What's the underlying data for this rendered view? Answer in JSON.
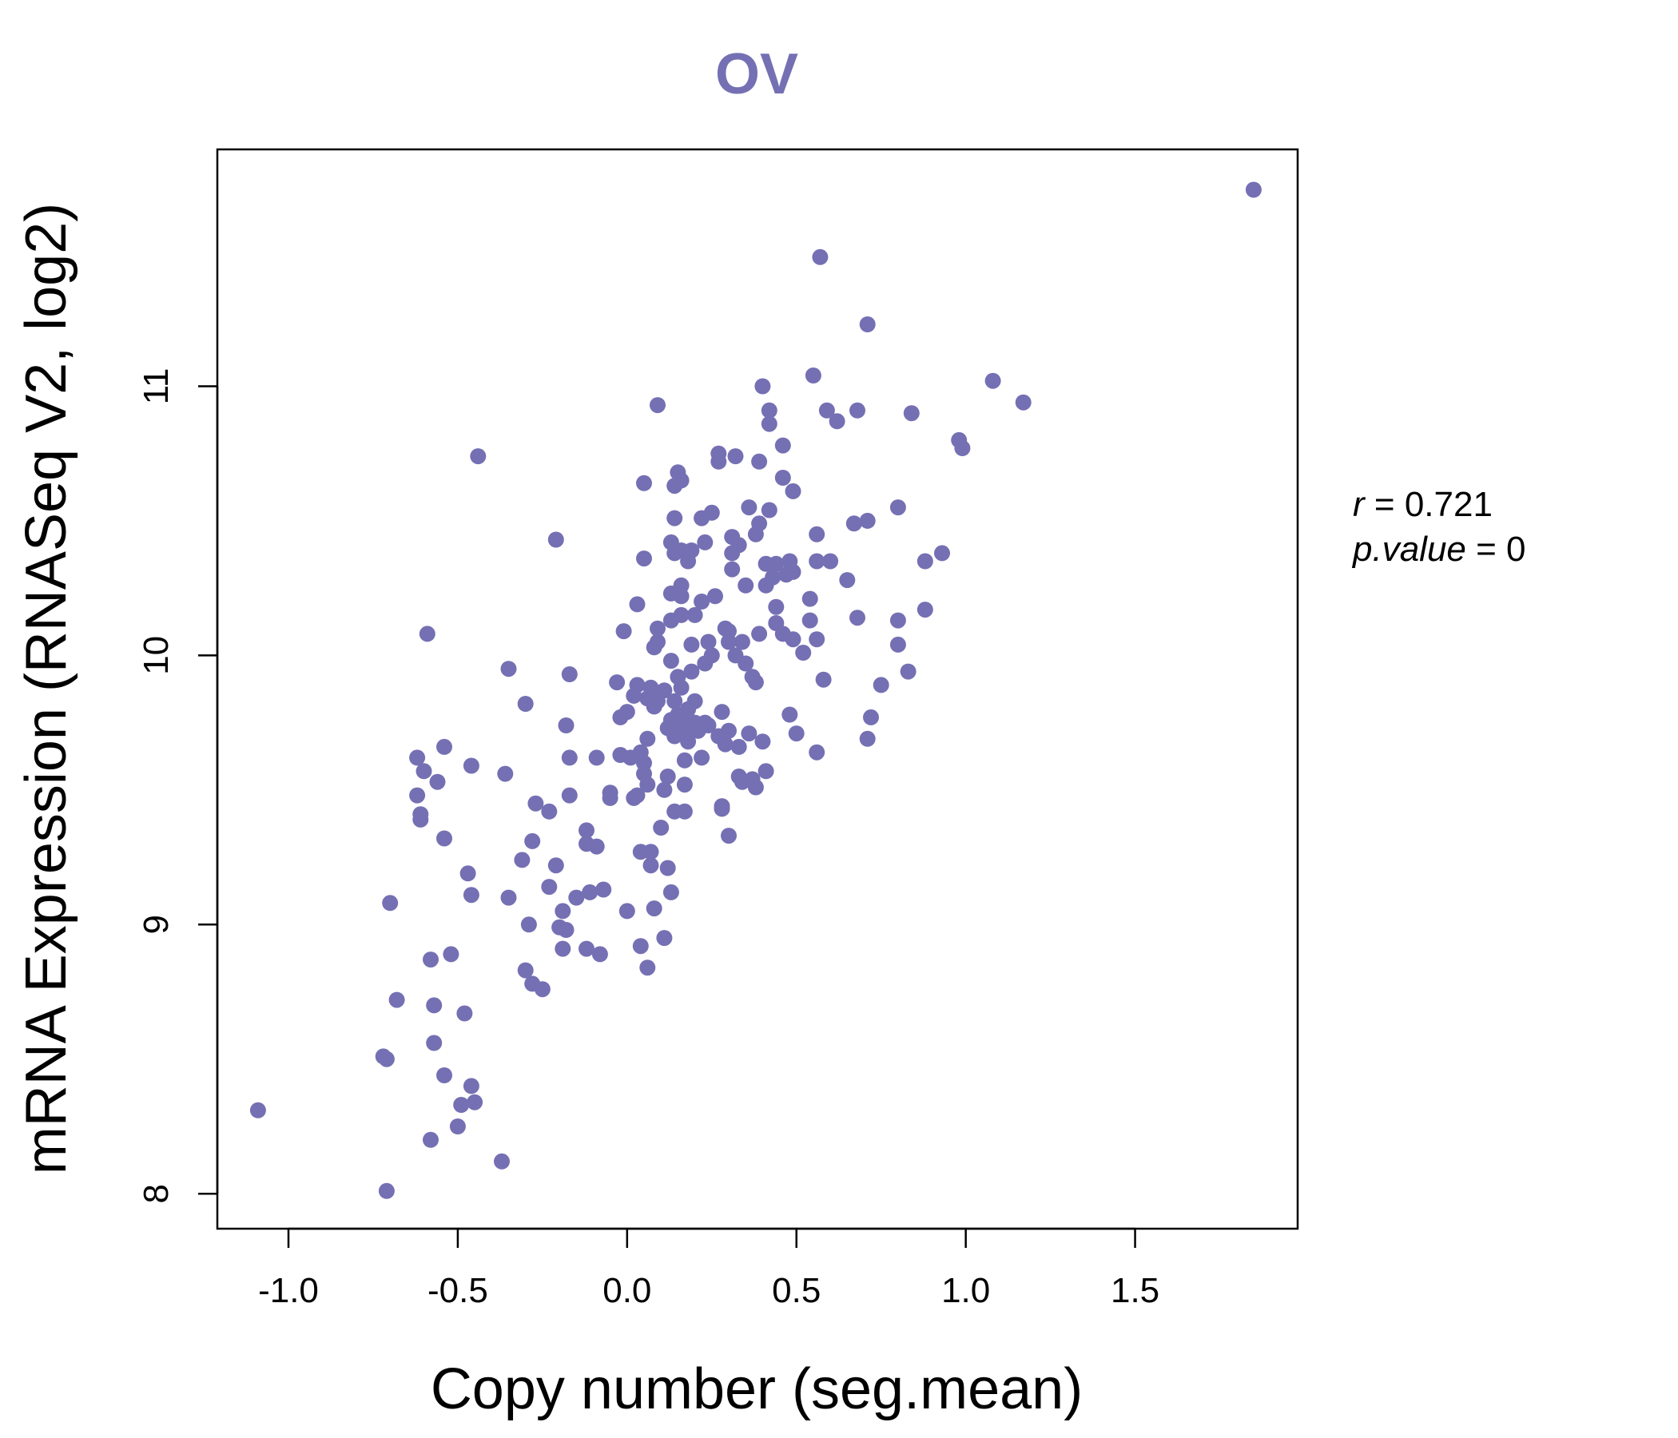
{
  "chart_data": {
    "type": "scatter",
    "title": "OV",
    "xlabel": "Copy number (seg.mean)",
    "ylabel": "mRNA Expression (RNASeq V2, log2)",
    "xlim": [
      -1.21,
      1.98
    ],
    "ylim": [
      7.87,
      11.88
    ],
    "xticks": [
      -1.0,
      -0.5,
      0.0,
      0.5,
      1.0,
      1.5
    ],
    "xtick_labels": [
      "-1.0",
      "-0.5",
      "0.0",
      "0.5",
      "1.0",
      "1.5"
    ],
    "yticks": [
      8,
      9,
      10,
      11
    ],
    "ytick_labels": [
      "8",
      "9",
      "10",
      "11"
    ],
    "point_color": "#7570b3",
    "annotation": {
      "r_label": "r",
      "r_value": "0.721",
      "p_label": "p.value",
      "p_value": "0"
    },
    "points": [
      [
        -1.09,
        8.31
      ],
      [
        -0.71,
        8.01
      ],
      [
        -0.72,
        8.51
      ],
      [
        -0.71,
        8.5
      ],
      [
        -0.68,
        8.72
      ],
      [
        -0.7,
        9.08
      ],
      [
        -0.62,
        9.62
      ],
      [
        -0.62,
        9.48
      ],
      [
        -0.61,
        9.41
      ],
      [
        -0.61,
        9.39
      ],
      [
        -0.6,
        9.57
      ],
      [
        -0.59,
        10.08
      ],
      [
        -0.56,
        9.53
      ],
      [
        -0.57,
        8.7
      ],
      [
        -0.57,
        8.56
      ],
      [
        -0.58,
        8.87
      ],
      [
        -0.58,
        8.2
      ],
      [
        -0.54,
        9.32
      ],
      [
        -0.54,
        9.66
      ],
      [
        -0.54,
        8.44
      ],
      [
        -0.52,
        8.89
      ],
      [
        -0.5,
        8.25
      ],
      [
        -0.49,
        8.33
      ],
      [
        -0.48,
        8.67
      ],
      [
        -0.47,
        9.19
      ],
      [
        -0.46,
        8.4
      ],
      [
        -0.45,
        8.34
      ],
      [
        -0.46,
        9.11
      ],
      [
        -0.46,
        9.59
      ],
      [
        -0.44,
        10.74
      ],
      [
        -0.37,
        8.12
      ],
      [
        -0.36,
        9.56
      ],
      [
        -0.35,
        9.1
      ],
      [
        -0.35,
        9.95
      ],
      [
        -0.31,
        9.24
      ],
      [
        -0.3,
        8.83
      ],
      [
        -0.3,
        9.82
      ],
      [
        -0.29,
        9.0
      ],
      [
        -0.28,
        9.31
      ],
      [
        -0.27,
        9.45
      ],
      [
        -0.28,
        8.78
      ],
      [
        -0.25,
        8.76
      ],
      [
        -0.23,
        9.42
      ],
      [
        -0.23,
        9.14
      ],
      [
        -0.21,
        10.43
      ],
      [
        -0.21,
        9.22
      ],
      [
        -0.2,
        8.99
      ],
      [
        -0.19,
        8.91
      ],
      [
        -0.19,
        9.05
      ],
      [
        -0.18,
        8.98
      ],
      [
        -0.18,
        9.74
      ],
      [
        -0.17,
        9.62
      ],
      [
        -0.17,
        9.48
      ],
      [
        -0.17,
        9.93
      ],
      [
        -0.15,
        9.1
      ],
      [
        -0.12,
        9.35
      ],
      [
        -0.12,
        9.3
      ],
      [
        -0.12,
        8.91
      ],
      [
        -0.11,
        9.12
      ],
      [
        -0.09,
        9.29
      ],
      [
        -0.09,
        9.62
      ],
      [
        -0.08,
        8.89
      ],
      [
        -0.07,
        9.13
      ],
      [
        -0.05,
        9.49
      ],
      [
        -0.05,
        9.47
      ],
      [
        -0.03,
        9.9
      ],
      [
        -0.02,
        9.63
      ],
      [
        -0.02,
        9.77
      ],
      [
        -0.01,
        10.09
      ],
      [
        0.0,
        9.79
      ],
      [
        0.0,
        9.05
      ],
      [
        0.01,
        9.62
      ],
      [
        0.02,
        9.85
      ],
      [
        0.02,
        9.47
      ],
      [
        0.03,
        9.89
      ],
      [
        0.03,
        9.48
      ],
      [
        0.03,
        10.19
      ],
      [
        0.04,
        9.64
      ],
      [
        0.04,
        9.27
      ],
      [
        0.04,
        8.92
      ],
      [
        0.05,
        10.36
      ],
      [
        0.05,
        10.64
      ],
      [
        0.05,
        9.56
      ],
      [
        0.05,
        9.6
      ],
      [
        0.06,
        9.52
      ],
      [
        0.06,
        9.69
      ],
      [
        0.06,
        9.84
      ],
      [
        0.06,
        8.84
      ],
      [
        0.07,
        9.27
      ],
      [
        0.07,
        9.22
      ],
      [
        0.07,
        9.88
      ],
      [
        0.08,
        10.03
      ],
      [
        0.08,
        9.06
      ],
      [
        0.08,
        9.81
      ],
      [
        0.09,
        10.1
      ],
      [
        0.09,
        10.05
      ],
      [
        0.09,
        9.83
      ],
      [
        0.09,
        9.86
      ],
      [
        0.09,
        10.93
      ],
      [
        0.1,
        9.36
      ],
      [
        0.11,
        9.5
      ],
      [
        0.11,
        9.87
      ],
      [
        0.11,
        8.95
      ],
      [
        0.12,
        9.21
      ],
      [
        0.12,
        9.73
      ],
      [
        0.12,
        9.55
      ],
      [
        0.13,
        9.76
      ],
      [
        0.13,
        10.23
      ],
      [
        0.13,
        10.42
      ],
      [
        0.13,
        9.98
      ],
      [
        0.13,
        10.13
      ],
      [
        0.13,
        9.12
      ],
      [
        0.14,
        10.51
      ],
      [
        0.14,
        9.42
      ],
      [
        0.14,
        9.7
      ],
      [
        0.14,
        10.38
      ],
      [
        0.14,
        10.63
      ],
      [
        0.14,
        9.83
      ],
      [
        0.15,
        9.78
      ],
      [
        0.15,
        9.92
      ],
      [
        0.15,
        10.68
      ],
      [
        0.15,
        9.73
      ],
      [
        0.16,
        10.39
      ],
      [
        0.16,
        9.88
      ],
      [
        0.16,
        10.15
      ],
      [
        0.16,
        10.22
      ],
      [
        0.16,
        10.26
      ],
      [
        0.16,
        10.65
      ],
      [
        0.17,
        9.52
      ],
      [
        0.17,
        9.42
      ],
      [
        0.17,
        9.61
      ],
      [
        0.17,
        9.71
      ],
      [
        0.18,
        9.76
      ],
      [
        0.18,
        9.8
      ],
      [
        0.18,
        10.35
      ],
      [
        0.18,
        9.68
      ],
      [
        0.19,
        9.94
      ],
      [
        0.19,
        10.39
      ],
      [
        0.19,
        10.04
      ],
      [
        0.2,
        9.75
      ],
      [
        0.2,
        10.15
      ],
      [
        0.2,
        9.83
      ],
      [
        0.21,
        9.72
      ],
      [
        0.22,
        10.2
      ],
      [
        0.22,
        10.51
      ],
      [
        0.22,
        9.62
      ],
      [
        0.23,
        9.75
      ],
      [
        0.23,
        10.42
      ],
      [
        0.23,
        9.97
      ],
      [
        0.24,
        9.74
      ],
      [
        0.24,
        10.05
      ],
      [
        0.25,
        10.53
      ],
      [
        0.25,
        10.0
      ],
      [
        0.26,
        10.22
      ],
      [
        0.27,
        9.7
      ],
      [
        0.27,
        10.72
      ],
      [
        0.27,
        10.75
      ],
      [
        0.28,
        9.79
      ],
      [
        0.28,
        9.43
      ],
      [
        0.28,
        9.44
      ],
      [
        0.29,
        10.1
      ],
      [
        0.29,
        9.67
      ],
      [
        0.3,
        9.33
      ],
      [
        0.3,
        10.05
      ],
      [
        0.3,
        10.09
      ],
      [
        0.3,
        9.72
      ],
      [
        0.31,
        10.32
      ],
      [
        0.31,
        10.38
      ],
      [
        0.31,
        10.44
      ],
      [
        0.32,
        10.74
      ],
      [
        0.32,
        10.0
      ],
      [
        0.33,
        9.55
      ],
      [
        0.33,
        9.66
      ],
      [
        0.33,
        10.41
      ],
      [
        0.34,
        9.53
      ],
      [
        0.34,
        10.05
      ],
      [
        0.35,
        9.97
      ],
      [
        0.35,
        10.26
      ],
      [
        0.36,
        9.71
      ],
      [
        0.36,
        10.55
      ],
      [
        0.37,
        9.92
      ],
      [
        0.37,
        9.54
      ],
      [
        0.38,
        10.45
      ],
      [
        0.38,
        9.51
      ],
      [
        0.38,
        9.9
      ],
      [
        0.39,
        10.49
      ],
      [
        0.39,
        10.08
      ],
      [
        0.39,
        10.72
      ],
      [
        0.4,
        9.68
      ],
      [
        0.4,
        11.0
      ],
      [
        0.41,
        10.26
      ],
      [
        0.41,
        9.57
      ],
      [
        0.41,
        10.34
      ],
      [
        0.42,
        10.54
      ],
      [
        0.42,
        10.86
      ],
      [
        0.42,
        10.91
      ],
      [
        0.43,
        10.29
      ],
      [
        0.44,
        10.12
      ],
      [
        0.44,
        10.34
      ],
      [
        0.44,
        10.18
      ],
      [
        0.46,
        10.08
      ],
      [
        0.46,
        10.66
      ],
      [
        0.46,
        10.78
      ],
      [
        0.47,
        10.3
      ],
      [
        0.48,
        9.78
      ],
      [
        0.48,
        10.35
      ],
      [
        0.49,
        10.61
      ],
      [
        0.49,
        10.06
      ],
      [
        0.49,
        10.31
      ],
      [
        0.5,
        9.71
      ],
      [
        0.52,
        10.01
      ],
      [
        0.54,
        10.21
      ],
      [
        0.54,
        10.13
      ],
      [
        0.55,
        11.04
      ],
      [
        0.56,
        9.64
      ],
      [
        0.56,
        10.35
      ],
      [
        0.56,
        10.45
      ],
      [
        0.56,
        10.06
      ],
      [
        0.57,
        11.48
      ],
      [
        0.58,
        9.91
      ],
      [
        0.59,
        10.91
      ],
      [
        0.6,
        10.35
      ],
      [
        0.62,
        10.87
      ],
      [
        0.65,
        10.28
      ],
      [
        0.67,
        10.49
      ],
      [
        0.68,
        10.91
      ],
      [
        0.68,
        10.14
      ],
      [
        0.71,
        10.5
      ],
      [
        0.71,
        9.69
      ],
      [
        0.72,
        9.77
      ],
      [
        0.71,
        11.23
      ],
      [
        0.75,
        9.89
      ],
      [
        0.8,
        10.04
      ],
      [
        0.8,
        10.13
      ],
      [
        0.8,
        10.55
      ],
      [
        0.83,
        9.94
      ],
      [
        0.84,
        10.9
      ],
      [
        0.88,
        10.35
      ],
      [
        0.88,
        10.17
      ],
      [
        0.93,
        10.38
      ],
      [
        0.98,
        10.8
      ],
      [
        0.99,
        10.77
      ],
      [
        1.08,
        11.02
      ],
      [
        1.17,
        10.94
      ],
      [
        1.85,
        11.73
      ]
    ]
  }
}
